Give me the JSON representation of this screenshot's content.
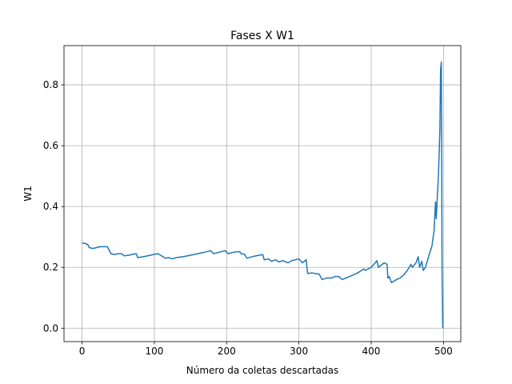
{
  "chart_data": {
    "type": "line",
    "title": "Fases X W1",
    "xlabel": "Número da coletas descartadas",
    "ylabel": "W1",
    "x": [
      0,
      5,
      8,
      10,
      15,
      20,
      25,
      30,
      35,
      40,
      45,
      50,
      55,
      58,
      65,
      70,
      75,
      77,
      85,
      95,
      100,
      105,
      110,
      115,
      120,
      125,
      130,
      140,
      150,
      160,
      170,
      178,
      182,
      190,
      198,
      202,
      210,
      218,
      220,
      225,
      228,
      235,
      245,
      250,
      252,
      258,
      262,
      268,
      272,
      278,
      285,
      290,
      300,
      305,
      310,
      312,
      318,
      322,
      328,
      332,
      338,
      345,
      350,
      355,
      360,
      370,
      380,
      390,
      392,
      400,
      408,
      410,
      418,
      422,
      423,
      425,
      428,
      435,
      440,
      445,
      450,
      455,
      457,
      462,
      465,
      467,
      470,
      472,
      475,
      480,
      484,
      487,
      489,
      490,
      491,
      493,
      495,
      496,
      497,
      497.5,
      498,
      499
    ],
    "series": [
      {
        "name": "W1",
        "color": "#1f77b4",
        "values": [
          0.28,
          0.278,
          0.275,
          0.265,
          0.262,
          0.265,
          0.268,
          0.268,
          0.268,
          0.245,
          0.242,
          0.245,
          0.245,
          0.238,
          0.24,
          0.243,
          0.245,
          0.232,
          0.235,
          0.24,
          0.243,
          0.245,
          0.238,
          0.23,
          0.232,
          0.228,
          0.232,
          0.235,
          0.24,
          0.245,
          0.25,
          0.255,
          0.245,
          0.25,
          0.255,
          0.245,
          0.25,
          0.252,
          0.245,
          0.243,
          0.23,
          0.235,
          0.24,
          0.242,
          0.225,
          0.228,
          0.22,
          0.225,
          0.218,
          0.222,
          0.215,
          0.222,
          0.228,
          0.215,
          0.225,
          0.18,
          0.182,
          0.18,
          0.178,
          0.16,
          0.165,
          0.165,
          0.17,
          0.17,
          0.16,
          0.17,
          0.18,
          0.195,
          0.19,
          0.2,
          0.222,
          0.2,
          0.215,
          0.21,
          0.165,
          0.17,
          0.15,
          0.16,
          0.165,
          0.175,
          0.19,
          0.21,
          0.2,
          0.215,
          0.235,
          0.2,
          0.22,
          0.19,
          0.2,
          0.24,
          0.27,
          0.32,
          0.415,
          0.36,
          0.41,
          0.5,
          0.65,
          0.85,
          0.875,
          0.6,
          0.2,
          0
        ]
      }
    ],
    "xlim": [
      -24.95,
      523.95
    ],
    "xticks": [
      0,
      100,
      200,
      300,
      400,
      500
    ],
    "ylim": [
      -0.044,
      0.929
    ],
    "yticks": [
      {
        "value": 0,
        "label": "0.0"
      },
      0.2,
      0.4,
      0.6,
      0.8
    ],
    "grid": true
  }
}
